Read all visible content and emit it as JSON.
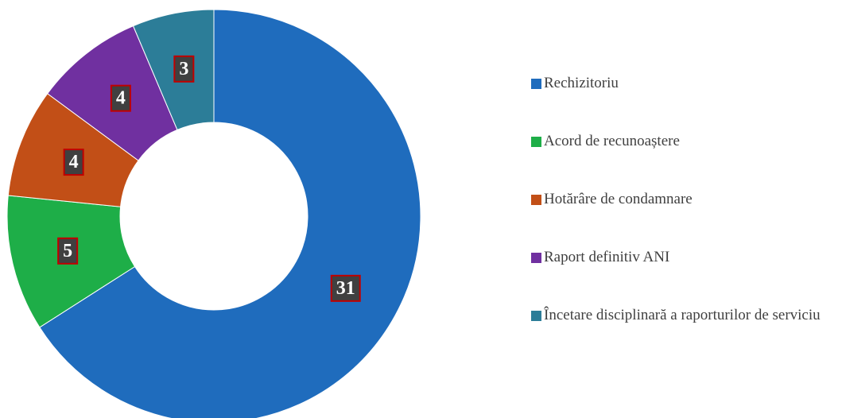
{
  "chart_data": {
    "type": "donut",
    "categories": [
      "Rechizitoriu",
      "Acord de recunoaștere",
      "Hotărâre de condamnare",
      "Raport definitiv ANI",
      "Încetare disciplinară a raporturilor de serviciu"
    ],
    "values": [
      31,
      5,
      4,
      4,
      3
    ],
    "colors": [
      "#1f6cbd",
      "#1eae48",
      "#c24f17",
      "#7030a0",
      "#2c7d98"
    ],
    "legend": "right"
  }
}
